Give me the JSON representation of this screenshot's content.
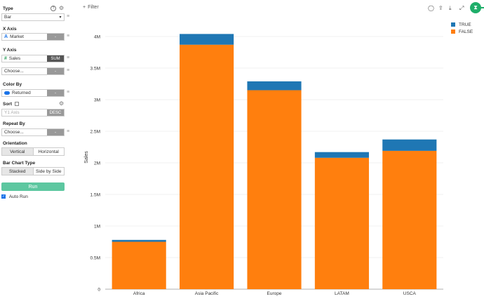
{
  "sidebar": {
    "type": {
      "label": "Type",
      "value": "Bar"
    },
    "x_axis": {
      "label": "X Axis",
      "field": "Market",
      "tag": "-"
    },
    "y_axis": {
      "label": "Y Axis",
      "field": "Sales",
      "agg": "SUM",
      "choose": "Choose...",
      "tag": "-"
    },
    "color_by": {
      "label": "Color By",
      "field": "Returned",
      "tag": "-"
    },
    "sort": {
      "label": "Sort",
      "placeholder": "Y1 Axis",
      "order": "DESC"
    },
    "repeat_by": {
      "label": "Repeat By",
      "choose": "Choose...",
      "tag": "-"
    },
    "orientation": {
      "label": "Orientation",
      "options": [
        "Vertical",
        "Horizontal"
      ],
      "selected": "Vertical"
    },
    "bar_chart_type": {
      "label": "Bar Chart Type",
      "options": [
        "Stacked",
        "Side by Side"
      ],
      "selected": "Stacked"
    },
    "run_label": "Run",
    "auto_run_label": "Auto Run"
  },
  "topbar": {
    "filter_label": "Filter"
  },
  "colors": {
    "true": "#1f77b4",
    "false": "#ff7f0e",
    "run": "#5cc7a0"
  },
  "chart_data": {
    "type": "bar",
    "stacked": true,
    "categories": [
      "Africa",
      "Asia Pacific",
      "Europe",
      "LATAM",
      "USCA"
    ],
    "series": [
      {
        "name": "FALSE",
        "values": [
          750000,
          3870000,
          3150000,
          2080000,
          2190000
        ]
      },
      {
        "name": "TRUE",
        "values": [
          30000,
          170000,
          140000,
          90000,
          180000
        ]
      }
    ],
    "ylabel": "Sales",
    "xlabel": "",
    "ylim": [
      0,
      4000000
    ],
    "yticks": [
      0,
      500000,
      1000000,
      1500000,
      2000000,
      2500000,
      3000000,
      3500000,
      4000000
    ],
    "ytick_labels": [
      "0",
      "0.5M",
      "1M",
      "1.5M",
      "2M",
      "2.5M",
      "3M",
      "3.5M",
      "4M"
    ],
    "legend": [
      "TRUE",
      "FALSE"
    ],
    "legend_position": "top-right",
    "grid": true
  }
}
